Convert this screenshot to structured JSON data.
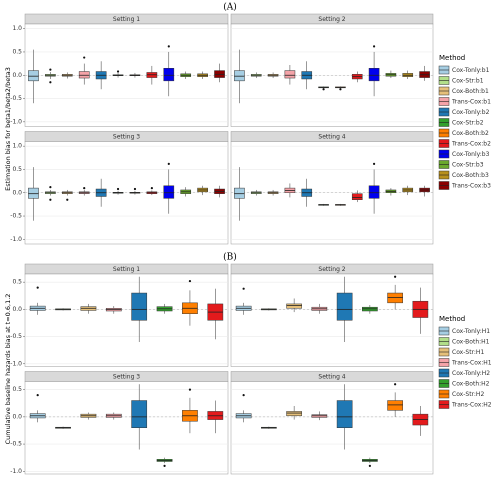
{
  "chart_data": [
    {
      "type": "box",
      "title": "(A)",
      "y_label": "Estimation bias for beta1/beta2/beta3",
      "ylim": [
        -1.1,
        1.1
      ],
      "yticks": [
        {
          "value": -1,
          "label": "-1.0"
        },
        {
          "value": -0.5,
          "label": "-0.5"
        },
        {
          "value": 0,
          "label": "0.0"
        },
        {
          "value": 0.5,
          "label": "0.5"
        },
        {
          "value": 1,
          "label": "1.0"
        }
      ],
      "grid": true,
      "hline": 0,
      "legend": "right",
      "legend_title": "Method",
      "series": [
        {
          "name": "Cox-Tonly:b1",
          "color": "#a6cee3"
        },
        {
          "name": "Cox-Str:b1",
          "color": "#b2df8a"
        },
        {
          "name": "Cox-Both:b1",
          "color": "#e6c07a"
        },
        {
          "name": "Trans-Cox:b1",
          "color": "#f4a3a8"
        },
        {
          "name": "Cox-Tonly:b2",
          "color": "#1f78b4"
        },
        {
          "name": "Cox-Str:b2",
          "color": "#33a02c"
        },
        {
          "name": "Cox-Both:b2",
          "color": "#ff7f00"
        },
        {
          "name": "Trans-Cox:b2",
          "color": "#e31a1c"
        },
        {
          "name": "Cox-Tonly:b3",
          "color": "#0000ee"
        },
        {
          "name": "Cox-Str:b3",
          "color": "#6aa82c"
        },
        {
          "name": "Cox-Both:b3",
          "color": "#b8901e"
        },
        {
          "name": "Trans-Cox:b3",
          "color": "#8b0000"
        }
      ],
      "facets": [
        {
          "title": "Setting 1",
          "boxes": [
            {
              "stats": [
                -0.6,
                -0.12,
                -0.02,
                0.1,
                0.55
              ]
            },
            {
              "stats": [
                -0.08,
                -0.02,
                0,
                0.02,
                0.07
              ],
              "outliers": [
                -0.15,
                0.12
              ]
            },
            {
              "stats": [
                -0.07,
                -0.02,
                0,
                0.02,
                0.06
              ]
            },
            {
              "stats": [
                -0.2,
                -0.06,
                0,
                0.08,
                0.25
              ],
              "outliers": [
                0.38
              ]
            },
            {
              "stats": [
                -0.3,
                -0.08,
                0,
                0.08,
                0.3
              ]
            },
            {
              "stats": [
                -0.05,
                -0.01,
                0,
                0.01,
                0.05
              ],
              "outliers": [
                0.08
              ]
            },
            {
              "stats": [
                -0.05,
                -0.01,
                0,
                0.01,
                0.05
              ]
            },
            {
              "stats": [
                -0.2,
                -0.05,
                0.01,
                0.06,
                0.2
              ]
            },
            {
              "stats": [
                -0.45,
                -0.12,
                0,
                0.15,
                0.5
              ],
              "outliers": [
                0.62
              ]
            },
            {
              "stats": [
                -0.08,
                -0.03,
                0,
                0.03,
                0.08
              ]
            },
            {
              "stats": [
                -0.08,
                -0.03,
                0,
                0.03,
                0.08
              ]
            },
            {
              "stats": [
                -0.15,
                -0.05,
                0.02,
                0.1,
                0.25
              ]
            }
          ]
        },
        {
          "title": "Setting 2",
          "boxes": [
            {
              "stats": [
                -0.6,
                -0.12,
                -0.02,
                0.1,
                0.55
              ]
            },
            {
              "stats": [
                -0.06,
                -0.02,
                0,
                0.02,
                0.06
              ]
            },
            {
              "stats": [
                -0.06,
                -0.02,
                0,
                0.02,
                0.06
              ]
            },
            {
              "stats": [
                -0.2,
                -0.06,
                0,
                0.1,
                0.22
              ]
            },
            {
              "stats": [
                -0.3,
                -0.08,
                0,
                0.08,
                0.3
              ]
            },
            {
              "stats": [
                -0.28,
                -0.27,
                -0.26,
                -0.25,
                -0.24
              ],
              "outliers": [
                -0.3
              ]
            },
            {
              "stats": [
                -0.28,
                -0.27,
                -0.26,
                -0.25,
                -0.24
              ],
              "outliers": [
                -0.3
              ]
            },
            {
              "stats": [
                -0.15,
                -0.08,
                -0.03,
                0.02,
                0.08
              ]
            },
            {
              "stats": [
                -0.45,
                -0.12,
                0,
                0.15,
                0.5
              ],
              "outliers": [
                0.62
              ]
            },
            {
              "stats": [
                -0.06,
                -0.02,
                0.01,
                0.04,
                0.1
              ]
            },
            {
              "stats": [
                -0.08,
                -0.03,
                0,
                0.04,
                0.1
              ]
            },
            {
              "stats": [
                -0.12,
                -0.05,
                0.01,
                0.08,
                0.2
              ]
            }
          ]
        },
        {
          "title": "Setting 3",
          "boxes": [
            {
              "stats": [
                -0.6,
                -0.12,
                -0.02,
                0.1,
                0.55
              ]
            },
            {
              "stats": [
                -0.06,
                -0.02,
                0,
                0.02,
                0.06
              ],
              "outliers": [
                -0.15,
                0.12
              ]
            },
            {
              "stats": [
                -0.06,
                -0.02,
                0,
                0.02,
                0.06
              ],
              "outliers": [
                -0.15
              ]
            },
            {
              "stats": [
                -0.06,
                -0.02,
                0,
                0.02,
                0.06
              ],
              "outliers": [
                0.1
              ]
            },
            {
              "stats": [
                -0.3,
                -0.08,
                0,
                0.08,
                0.3
              ]
            },
            {
              "stats": [
                -0.04,
                -0.01,
                0,
                0.01,
                0.04
              ],
              "outliers": [
                0.08
              ]
            },
            {
              "stats": [
                -0.04,
                -0.01,
                0,
                0.01,
                0.04
              ],
              "outliers": [
                0.08
              ]
            },
            {
              "stats": [
                -0.05,
                -0.02,
                0,
                0.02,
                0.05
              ],
              "outliers": [
                0.1
              ]
            },
            {
              "stats": [
                -0.45,
                -0.12,
                0,
                0.15,
                0.5
              ],
              "outliers": [
                0.62
              ]
            },
            {
              "stats": [
                -0.08,
                -0.02,
                0.02,
                0.06,
                0.12
              ]
            },
            {
              "stats": [
                -0.05,
                0.02,
                0.06,
                0.1,
                0.15
              ]
            },
            {
              "stats": [
                -0.1,
                -0.02,
                0.03,
                0.08,
                0.15
              ]
            }
          ]
        },
        {
          "title": "Setting 4",
          "boxes": [
            {
              "stats": [
                -0.6,
                -0.12,
                -0.02,
                0.1,
                0.55
              ]
            },
            {
              "stats": [
                -0.06,
                -0.02,
                0,
                0.02,
                0.06
              ]
            },
            {
              "stats": [
                -0.06,
                -0.02,
                0,
                0.02,
                0.06
              ]
            },
            {
              "stats": [
                -0.1,
                0,
                0.05,
                0.1,
                0.2
              ]
            },
            {
              "stats": [
                -0.3,
                -0.08,
                0,
                0.08,
                0.3
              ]
            },
            {
              "stats": [
                -0.28,
                -0.27,
                -0.26,
                -0.25,
                -0.24
              ]
            },
            {
              "stats": [
                -0.28,
                -0.27,
                -0.26,
                -0.25,
                -0.24
              ]
            },
            {
              "stats": [
                -0.2,
                -0.15,
                -0.1,
                -0.02,
                0.05
              ]
            },
            {
              "stats": [
                -0.45,
                -0.12,
                0,
                0.15,
                0.5
              ],
              "outliers": [
                0.62
              ]
            },
            {
              "stats": [
                -0.06,
                0,
                0.03,
                0.06,
                0.1
              ]
            },
            {
              "stats": [
                -0.05,
                0.02,
                0.06,
                0.1,
                0.15
              ]
            },
            {
              "stats": [
                -0.08,
                0.02,
                0.06,
                0.1,
                0.15
              ]
            }
          ]
        }
      ]
    },
    {
      "type": "box",
      "title": "(B)",
      "y_label": "Cumulative baseline hazards bias at t=0.6,1.2",
      "ylim": [
        -1.05,
        0.65
      ],
      "yticks": [
        {
          "value": -1,
          "label": "-1.0"
        },
        {
          "value": -0.5,
          "label": "-0.5"
        },
        {
          "value": 0,
          "label": "0.0"
        },
        {
          "value": 0.5,
          "label": "0.5"
        }
      ],
      "grid": true,
      "hline": 0,
      "legend": "right",
      "legend_title": "Method",
      "series": [
        {
          "name": "Cox-Tonly:H1",
          "color": "#a6cee3"
        },
        {
          "name": "Cox-Both:H1",
          "color": "#b2df8a"
        },
        {
          "name": "Cox-Str:H1",
          "color": "#e6c07a"
        },
        {
          "name": "Trans-Cox:H1",
          "color": "#f4a3a8"
        },
        {
          "name": "Cox-Tonly:H2",
          "color": "#1f78b4"
        },
        {
          "name": "Cox-Both:H2",
          "color": "#33a02c"
        },
        {
          "name": "Cox-Str:H2",
          "color": "#ff7f00"
        },
        {
          "name": "Trans-Cox:H2",
          "color": "#e31a1c"
        }
      ],
      "facets": [
        {
          "title": "Setting 1",
          "boxes": [
            {
              "stats": [
                -0.1,
                -0.02,
                0.02,
                0.06,
                0.12
              ],
              "outliers": [
                0.4
              ]
            },
            {
              "stats": [
                -0.02,
                -0.01,
                0,
                0.01,
                0.02
              ]
            },
            {
              "stats": [
                -0.08,
                -0.02,
                0.02,
                0.05,
                0.1
              ]
            },
            {
              "stats": [
                -0.08,
                -0.03,
                0,
                0.02,
                0.06
              ]
            },
            {
              "stats": [
                -0.6,
                -0.2,
                0,
                0.3,
                0.6
              ]
            },
            {
              "stats": [
                -0.08,
                -0.03,
                0.01,
                0.05,
                0.1
              ]
            },
            {
              "stats": [
                -0.3,
                -0.08,
                0.02,
                0.12,
                0.35
              ],
              "outliers": [
                0.52
              ]
            },
            {
              "stats": [
                -0.55,
                -0.2,
                -0.05,
                0.1,
                0.38
              ]
            }
          ]
        },
        {
          "title": "Setting 2",
          "boxes": [
            {
              "stats": [
                -0.1,
                -0.02,
                0.02,
                0.06,
                0.12
              ],
              "outliers": [
                0.38
              ]
            },
            {
              "stats": [
                -0.02,
                -0.01,
                0,
                0.01,
                0.02
              ]
            },
            {
              "stats": [
                -0.05,
                0.02,
                0.07,
                0.1,
                0.2
              ]
            },
            {
              "stats": [
                -0.08,
                -0.02,
                0.01,
                0.04,
                0.1
              ]
            },
            {
              "stats": [
                -0.6,
                -0.2,
                0,
                0.3,
                0.6
              ]
            },
            {
              "stats": [
                -0.08,
                -0.03,
                0.01,
                0.04,
                0.08
              ]
            },
            {
              "stats": [
                0,
                0.12,
                0.22,
                0.3,
                0.45
              ],
              "outliers": [
                0.6
              ]
            },
            {
              "stats": [
                -0.45,
                -0.15,
                0,
                0.15,
                0.4
              ]
            }
          ]
        },
        {
          "title": "Setting 3",
          "boxes": [
            {
              "stats": [
                -0.1,
                -0.02,
                0.02,
                0.06,
                0.12
              ],
              "outliers": [
                0.4
              ]
            },
            {
              "stats": [
                -0.22,
                -0.21,
                -0.2,
                -0.19,
                -0.18
              ]
            },
            {
              "stats": [
                -0.05,
                -0.01,
                0.02,
                0.05,
                0.08
              ]
            },
            {
              "stats": [
                -0.05,
                -0.01,
                0.02,
                0.05,
                0.08
              ]
            },
            {
              "stats": [
                -0.6,
                -0.2,
                0,
                0.3,
                0.6
              ]
            },
            {
              "stats": [
                -0.85,
                -0.82,
                -0.8,
                -0.78,
                -0.75
              ],
              "outliers": [
                -0.9
              ]
            },
            {
              "stats": [
                -0.3,
                -0.08,
                0.02,
                0.12,
                0.35
              ],
              "outliers": [
                0.5
              ]
            },
            {
              "stats": [
                -0.3,
                -0.05,
                0.02,
                0.1,
                0.3
              ]
            }
          ]
        },
        {
          "title": "Setting 4",
          "boxes": [
            {
              "stats": [
                -0.1,
                -0.02,
                0.02,
                0.06,
                0.12
              ],
              "outliers": [
                0.4
              ]
            },
            {
              "stats": [
                -0.22,
                -0.21,
                -0.2,
                -0.19,
                -0.18
              ]
            },
            {
              "stats": [
                -0.05,
                0.02,
                0.07,
                0.1,
                0.2
              ]
            },
            {
              "stats": [
                -0.06,
                -0.01,
                0.02,
                0.04,
                0.1
              ]
            },
            {
              "stats": [
                -0.6,
                -0.2,
                0,
                0.3,
                0.6
              ]
            },
            {
              "stats": [
                -0.85,
                -0.82,
                -0.8,
                -0.78,
                -0.75
              ],
              "outliers": [
                -0.9
              ]
            },
            {
              "stats": [
                0,
                0.12,
                0.22,
                0.3,
                0.45
              ],
              "outliers": [
                0.6
              ]
            },
            {
              "stats": [
                -0.35,
                -0.15,
                -0.05,
                0.05,
                0.2
              ]
            }
          ]
        }
      ]
    }
  ]
}
